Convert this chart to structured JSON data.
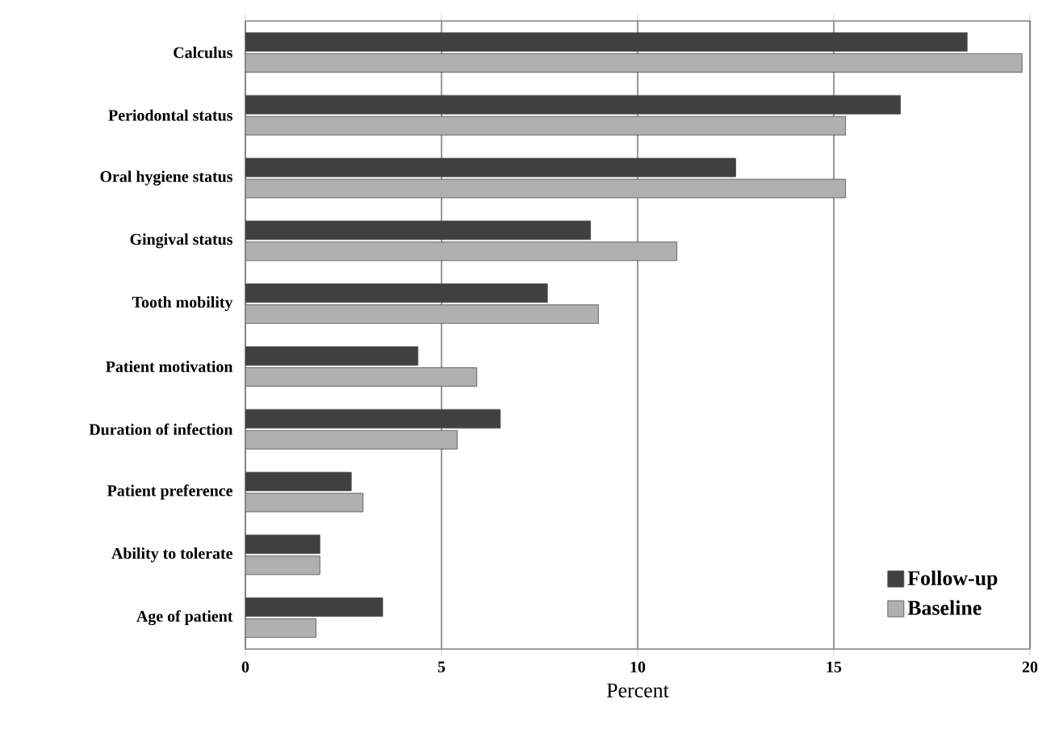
{
  "chart_data": {
    "type": "bar",
    "orientation": "horizontal",
    "xlabel": "Percent",
    "categories": [
      "Calculus",
      "Periodontal status",
      "Oral hygiene status",
      "Gingival status",
      "Tooth mobility",
      "Patient motivation",
      "Duration of infection",
      "Patient preference",
      "Ability to tolerate",
      "Age of patient"
    ],
    "series": [
      {
        "name": "Follow-up",
        "color": "#404040",
        "values": [
          18.4,
          16.7,
          12.5,
          8.8,
          7.7,
          4.4,
          6.5,
          2.7,
          1.9,
          3.5
        ]
      },
      {
        "name": "Baseline",
        "color": "#b0b0b0",
        "values": [
          19.8,
          15.3,
          15.3,
          11.0,
          9.0,
          5.9,
          5.4,
          3.0,
          1.9,
          1.8
        ]
      }
    ],
    "xlim": [
      0,
      20
    ],
    "xticks": [
      0,
      5,
      10,
      15,
      20
    ],
    "grid": "x",
    "legend": "bottom right"
  }
}
